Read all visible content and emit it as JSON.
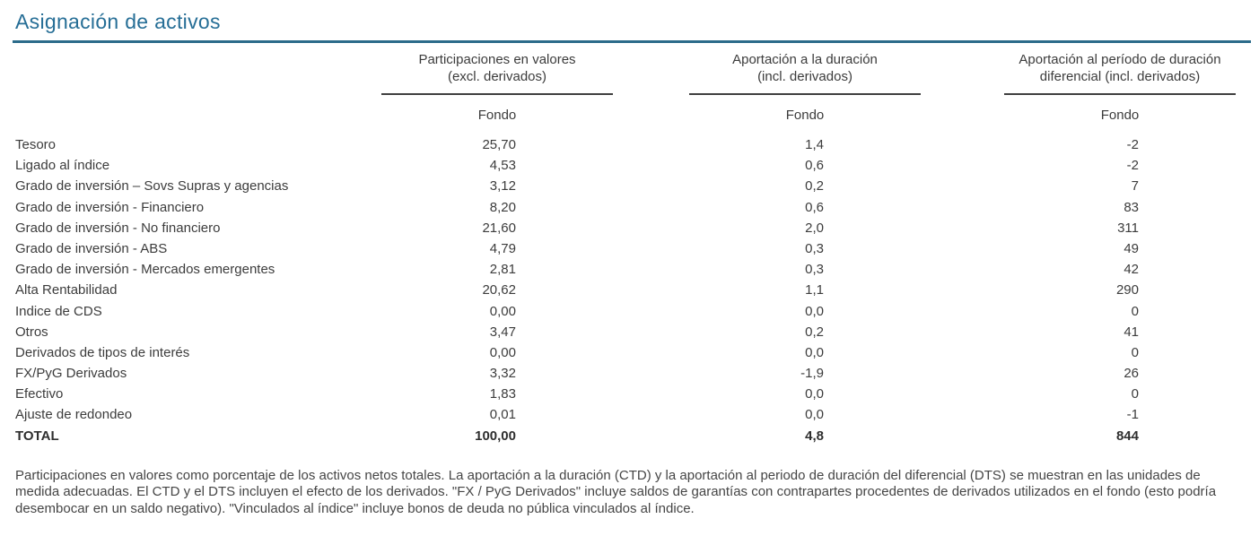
{
  "page": {
    "title": "Asignación de activos"
  },
  "colors": {
    "accent_title": "#266e96",
    "title_rule": "#2b6b8a",
    "header_rule": "#3f3f3f",
    "body_text": "#3c3c3c"
  },
  "table": {
    "groups": [
      {
        "line1": "Participaciones en valores",
        "line2": "(excl. derivados)",
        "sub": "Fondo"
      },
      {
        "line1": "Aportación a la duración",
        "line2": "(incl. derivados)",
        "sub": "Fondo"
      },
      {
        "line1": "Aportación al período de duración",
        "line2": "diferencial (incl. derivados)",
        "sub": "Fondo"
      }
    ],
    "rows": [
      {
        "label": "Tesoro",
        "values": [
          "25,70",
          "1,4",
          "-2"
        ]
      },
      {
        "label": "Ligado al índice",
        "values": [
          "4,53",
          "0,6",
          "-2"
        ]
      },
      {
        "label": "Grado de inversión – Sovs Supras y agencias",
        "values": [
          "3,12",
          "0,2",
          "7"
        ]
      },
      {
        "label": "Grado de inversión - Financiero",
        "values": [
          "8,20",
          "0,6",
          "83"
        ]
      },
      {
        "label": "Grado de inversión - No financiero",
        "values": [
          "21,60",
          "2,0",
          "311"
        ]
      },
      {
        "label": "Grado de inversión - ABS",
        "values": [
          "4,79",
          "0,3",
          "49"
        ]
      },
      {
        "label": "Grado de inversión - Mercados emergentes",
        "values": [
          "2,81",
          "0,3",
          "42"
        ]
      },
      {
        "label": "Alta Rentabilidad",
        "values": [
          "20,62",
          "1,1",
          "290"
        ]
      },
      {
        "label": "Indice de CDS",
        "values": [
          "0,00",
          "0,0",
          "0"
        ]
      },
      {
        "label": "Otros",
        "values": [
          "3,47",
          "0,2",
          "41"
        ]
      },
      {
        "label": "Derivados de tipos de interés",
        "values": [
          "0,00",
          "0,0",
          "0"
        ]
      },
      {
        "label": "FX/PyG Derivados",
        "values": [
          "3,32",
          "-1,9",
          "26"
        ]
      },
      {
        "label": "Efectivo",
        "values": [
          "1,83",
          "0,0",
          "0"
        ]
      },
      {
        "label": "Ajuste de redondeo",
        "values": [
          "0,01",
          "0,0",
          "-1"
        ]
      },
      {
        "label": "TOTAL",
        "values": [
          "100,00",
          "4,8",
          "844"
        ]
      }
    ]
  },
  "footnote": "Participaciones en valores como porcentaje de los activos netos totales. La aportación a la duración (CTD) y la aportación al periodo de duración del diferencial (DTS) se muestran en las unidades de medida adecuadas. El CTD y el DTS incluyen el efecto de los derivados. \"FX / PyG Derivados\" incluye saldos de garantías con contrapartes procedentes de derivados utilizados en el fondo (esto podría desembocar en un saldo negativo). \"Vinculados al índice\" incluye bonos de deuda no pública vinculados al índice."
}
